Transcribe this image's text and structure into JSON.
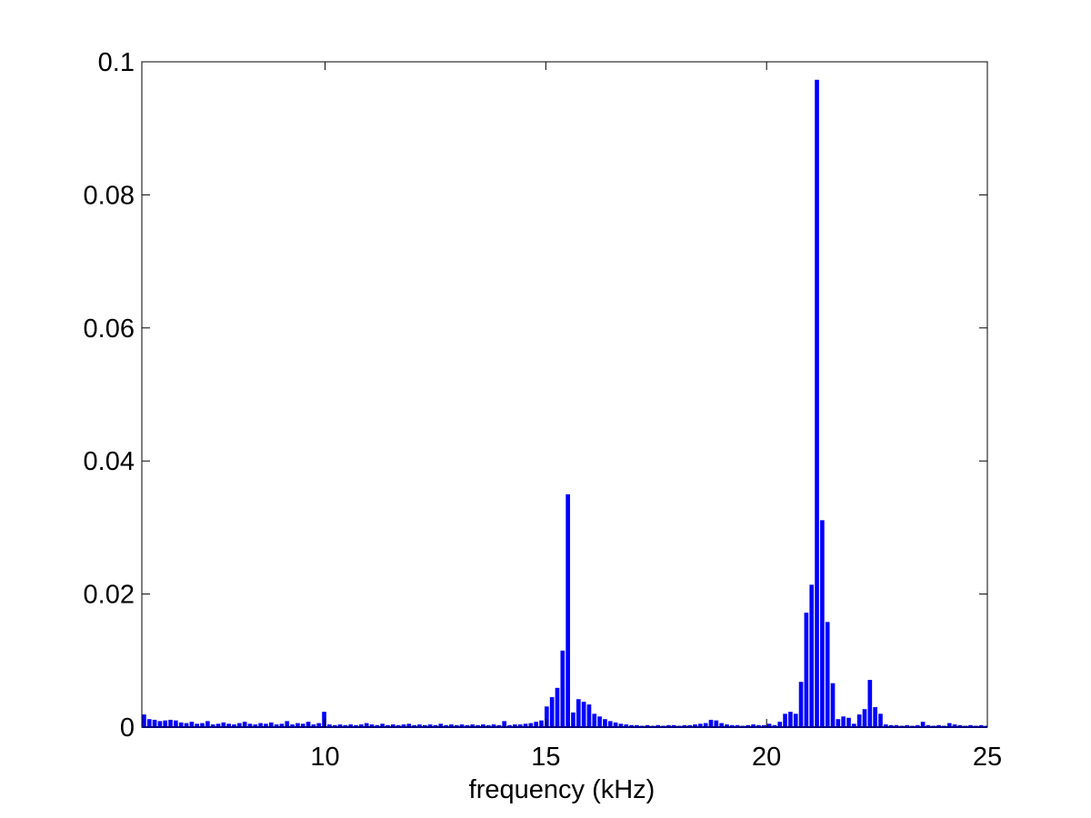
{
  "chart_data": {
    "type": "bar",
    "title": "",
    "xlabel": "frequency (kHz)",
    "ylabel": "",
    "xlim": [
      5.85,
      25
    ],
    "ylim": [
      0,
      0.1
    ],
    "xticks": [
      "10",
      "15",
      "20",
      "25"
    ],
    "yticks": [
      "0",
      "0.02",
      "0.04",
      "0.06",
      "0.08",
      "0.1"
    ],
    "grid": false,
    "legend": "none",
    "bar_color": "#0000ff",
    "x": [
      5.9,
      6.02,
      6.14,
      6.26,
      6.38,
      6.5,
      6.62,
      6.74,
      6.86,
      6.98,
      7.1,
      7.22,
      7.34,
      7.46,
      7.58,
      7.7,
      7.82,
      7.94,
      8.06,
      8.18,
      8.3,
      8.42,
      8.54,
      8.66,
      8.78,
      8.9,
      9.02,
      9.14,
      9.26,
      9.38,
      9.5,
      9.62,
      9.74,
      9.86,
      9.98,
      10.1,
      10.22,
      10.34,
      10.46,
      10.58,
      10.7,
      10.82,
      10.94,
      11.06,
      11.18,
      11.3,
      11.42,
      11.54,
      11.66,
      11.78,
      11.9,
      12.02,
      12.14,
      12.26,
      12.38,
      12.5,
      12.62,
      12.74,
      12.86,
      12.98,
      13.1,
      13.22,
      13.34,
      13.46,
      13.58,
      13.7,
      13.82,
      13.94,
      14.06,
      14.18,
      14.3,
      14.42,
      14.54,
      14.66,
      14.78,
      14.9,
      15.02,
      15.14,
      15.26,
      15.38,
      15.5,
      15.62,
      15.74,
      15.86,
      15.98,
      16.1,
      16.22,
      16.34,
      16.46,
      16.58,
      16.7,
      16.82,
      16.94,
      17.06,
      17.18,
      17.3,
      17.42,
      17.54,
      17.66,
      17.78,
      17.9,
      18.02,
      18.14,
      18.26,
      18.38,
      18.5,
      18.62,
      18.74,
      18.86,
      18.98,
      19.1,
      19.22,
      19.34,
      19.46,
      19.58,
      19.7,
      19.82,
      19.94,
      20.06,
      20.18,
      20.3,
      20.42,
      20.54,
      20.66,
      20.78,
      20.9,
      21.02,
      21.14,
      21.26,
      21.38,
      21.5,
      21.62,
      21.74,
      21.86,
      21.98,
      22.1,
      22.22,
      22.34,
      22.46,
      22.58,
      22.7,
      22.82,
      22.94,
      23.06,
      23.18,
      23.3,
      23.42,
      23.54,
      23.66,
      23.78,
      23.9,
      24.02,
      24.14,
      24.26,
      24.38,
      24.5,
      24.62,
      24.74,
      24.86,
      24.98
    ],
    "values": [
      0.0019,
      0.0012,
      0.0011,
      0.0009,
      0.001,
      0.0011,
      0.001,
      0.0007,
      0.0006,
      0.0008,
      0.0005,
      0.0006,
      0.0009,
      0.0004,
      0.0005,
      0.0007,
      0.0005,
      0.0004,
      0.0006,
      0.0008,
      0.0005,
      0.0004,
      0.0006,
      0.0005,
      0.0007,
      0.0004,
      0.0005,
      0.0009,
      0.0004,
      0.0006,
      0.0005,
      0.0008,
      0.0004,
      0.0006,
      0.0023,
      0.0004,
      0.0003,
      0.0004,
      0.0003,
      0.0004,
      0.0003,
      0.0004,
      0.0006,
      0.0004,
      0.0003,
      0.0005,
      0.0003,
      0.0004,
      0.0003,
      0.0004,
      0.0005,
      0.0003,
      0.0004,
      0.0003,
      0.0004,
      0.0003,
      0.0005,
      0.0003,
      0.0004,
      0.0003,
      0.0004,
      0.0003,
      0.0004,
      0.0003,
      0.0004,
      0.0003,
      0.0004,
      0.0003,
      0.0009,
      0.0003,
      0.0004,
      0.0004,
      0.0005,
      0.0006,
      0.0008,
      0.001,
      0.0031,
      0.0045,
      0.0059,
      0.0115,
      0.035,
      0.0022,
      0.0042,
      0.0038,
      0.0034,
      0.002,
      0.0016,
      0.0012,
      0.0009,
      0.0007,
      0.0005,
      0.0004,
      0.0003,
      0.0003,
      0.0002,
      0.0003,
      0.0002,
      0.0003,
      0.0002,
      0.0003,
      0.0003,
      0.0002,
      0.0003,
      0.0003,
      0.0004,
      0.0005,
      0.0006,
      0.0011,
      0.001,
      0.0006,
      0.0004,
      0.0003,
      0.0003,
      0.0002,
      0.0003,
      0.0004,
      0.0003,
      0.0003,
      0.0005,
      0.0003,
      0.0008,
      0.002,
      0.0023,
      0.002,
      0.0068,
      0.0172,
      0.0214,
      0.0973,
      0.0311,
      0.0158,
      0.0066,
      0.0012,
      0.0016,
      0.0014,
      0.0005,
      0.0019,
      0.0027,
      0.0071,
      0.003,
      0.002,
      0.0004,
      0.0003,
      0.0003,
      0.0002,
      0.0003,
      0.0002,
      0.0003,
      0.0008,
      0.0003,
      0.0002,
      0.0003,
      0.0002,
      0.0006,
      0.0004,
      0.0003,
      0.0002,
      0.0003,
      0.0002,
      0.0003,
      0.0002
    ]
  }
}
